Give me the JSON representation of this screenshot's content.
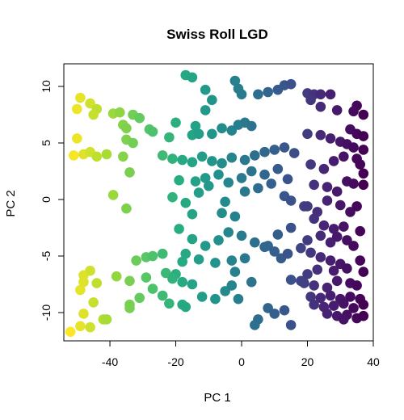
{
  "chart_data": {
    "type": "scatter",
    "title": "Swiss Roll LGD",
    "xlabel": "PC 1",
    "ylabel": "PC 2",
    "xlim": [
      -54,
      40
    ],
    "ylim": [
      -12.5,
      12
    ],
    "xticks": [
      -40,
      -20,
      0,
      20,
      40
    ],
    "yticks": [
      -10,
      -5,
      0,
      5,
      10
    ],
    "color_scale": "viridis (by PC 1)",
    "grid": false,
    "legend": "none",
    "points": [
      {
        "x": -49,
        "y": 9
      },
      {
        "x": -50,
        "y": 8
      },
      {
        "x": -46,
        "y": 8.5
      },
      {
        "x": -44,
        "y": 8
      },
      {
        "x": -45,
        "y": 7.5
      },
      {
        "x": -39,
        "y": 7.6
      },
      {
        "x": -37,
        "y": 7.7
      },
      {
        "x": -33,
        "y": 7.5
      },
      {
        "x": -31,
        "y": 7.2
      },
      {
        "x": -36,
        "y": 6.6
      },
      {
        "x": -35,
        "y": 6.3
      },
      {
        "x": -28,
        "y": 6.2
      },
      {
        "x": -27,
        "y": 6
      },
      {
        "x": -50,
        "y": 5.4
      },
      {
        "x": -51,
        "y": 3.9
      },
      {
        "x": -48,
        "y": 4
      },
      {
        "x": -46,
        "y": 4.2
      },
      {
        "x": -44,
        "y": 3.8
      },
      {
        "x": -41,
        "y": 4
      },
      {
        "x": -35,
        "y": 5.3
      },
      {
        "x": -33,
        "y": 5
      },
      {
        "x": -36,
        "y": 3.8
      },
      {
        "x": -34,
        "y": 2.4
      },
      {
        "x": -39,
        "y": 0.4
      },
      {
        "x": -35,
        "y": -0.8
      },
      {
        "x": -52,
        "y": -11.7
      },
      {
        "x": -49,
        "y": -11.2
      },
      {
        "x": -46,
        "y": -11.3
      },
      {
        "x": -42,
        "y": -10.6
      },
      {
        "x": -41,
        "y": -10.6
      },
      {
        "x": -48,
        "y": -10.1
      },
      {
        "x": -49,
        "y": -8
      },
      {
        "x": -48,
        "y": -7.3
      },
      {
        "x": -48,
        "y": -6.7
      },
      {
        "x": -46,
        "y": -6.3
      },
      {
        "x": -45,
        "y": -9.1
      },
      {
        "x": -44,
        "y": -7.4
      },
      {
        "x": -38,
        "y": -6.8
      },
      {
        "x": -34,
        "y": -7.2
      },
      {
        "x": -34,
        "y": -9.3
      },
      {
        "x": -34,
        "y": -9.6
      },
      {
        "x": -31,
        "y": -8.7
      },
      {
        "x": -29,
        "y": -6.9
      },
      {
        "x": -27,
        "y": -7.9
      },
      {
        "x": -32,
        "y": -5.4
      },
      {
        "x": -29,
        "y": -5.1
      },
      {
        "x": -27,
        "y": -5
      },
      {
        "x": -24,
        "y": -4.8
      },
      {
        "x": -23,
        "y": -6.5
      },
      {
        "x": -24,
        "y": -8.5
      },
      {
        "x": -20,
        "y": -6.6
      },
      {
        "x": -18,
        "y": -5.5
      },
      {
        "x": -18,
        "y": -7.3
      },
      {
        "x": -15,
        "y": -7.5
      },
      {
        "x": -12,
        "y": -8.6
      },
      {
        "x": -8,
        "y": -8.8
      },
      {
        "x": -5,
        "y": -8.1
      },
      {
        "x": -3,
        "y": -7.6
      },
      {
        "x": -1,
        "y": -8.8
      },
      {
        "x": -22,
        "y": -9.2
      },
      {
        "x": -18,
        "y": -9.3
      },
      {
        "x": -17,
        "y": -9.5
      },
      {
        "x": -21,
        "y": -7
      },
      {
        "x": -17,
        "y": 11
      },
      {
        "x": -15,
        "y": 10.8
      },
      {
        "x": -11,
        "y": 9.7
      },
      {
        "x": -9,
        "y": 8.8
      },
      {
        "x": -11,
        "y": 7.9
      },
      {
        "x": -14,
        "y": 6.5
      },
      {
        "x": -20,
        "y": 6.8
      },
      {
        "x": -22,
        "y": 5.5
      },
      {
        "x": -15,
        "y": 5.7
      },
      {
        "x": -13,
        "y": 5.8
      },
      {
        "x": -9,
        "y": 5.8
      },
      {
        "x": -6,
        "y": 6.3
      },
      {
        "x": -3,
        "y": 6.1
      },
      {
        "x": -1,
        "y": 6.6
      },
      {
        "x": 1,
        "y": 6.8
      },
      {
        "x": 3,
        "y": 6.5
      },
      {
        "x": -2,
        "y": 10.5
      },
      {
        "x": -1,
        "y": 9.8
      },
      {
        "x": 0,
        "y": 9.3
      },
      {
        "x": 5,
        "y": 9.3
      },
      {
        "x": 8,
        "y": 9.5
      },
      {
        "x": 11,
        "y": 9.7
      },
      {
        "x": 13,
        "y": 10.1
      },
      {
        "x": 15,
        "y": 10.2
      },
      {
        "x": -24,
        "y": 3.9
      },
      {
        "x": -21,
        "y": 3.6
      },
      {
        "x": -18,
        "y": 3.5
      },
      {
        "x": -15,
        "y": 3.3
      },
      {
        "x": -12,
        "y": 3.8
      },
      {
        "x": -9,
        "y": 3.4
      },
      {
        "x": -6,
        "y": 3.2
      },
      {
        "x": -3,
        "y": 3.7
      },
      {
        "x": 1,
        "y": 3.5
      },
      {
        "x": 4,
        "y": 3.9
      },
      {
        "x": 7,
        "y": 4.2
      },
      {
        "x": 10,
        "y": 4.4
      },
      {
        "x": 13,
        "y": 4.6
      },
      {
        "x": 16,
        "y": 4.1
      },
      {
        "x": -19,
        "y": 1.7
      },
      {
        "x": -14,
        "y": 1.6
      },
      {
        "x": -11,
        "y": 1.9
      },
      {
        "x": -7,
        "y": 2.2
      },
      {
        "x": -4,
        "y": 1.5
      },
      {
        "x": 0,
        "y": 1.9
      },
      {
        "x": 3,
        "y": 2.5
      },
      {
        "x": 7,
        "y": 2.2
      },
      {
        "x": 11,
        "y": 2.7
      },
      {
        "x": 14,
        "y": 1.8
      },
      {
        "x": -21,
        "y": 0.2
      },
      {
        "x": -17,
        "y": -0.3
      },
      {
        "x": -13,
        "y": 0.6
      },
      {
        "x": -10,
        "y": 1.2
      },
      {
        "x": -5,
        "y": -0.2
      },
      {
        "x": 1,
        "y": 0.7
      },
      {
        "x": 5,
        "y": 1
      },
      {
        "x": 9,
        "y": 1.4
      },
      {
        "x": 13,
        "y": 0.3
      },
      {
        "x": -15,
        "y": -1.3
      },
      {
        "x": -6,
        "y": -1.2
      },
      {
        "x": -2,
        "y": -1.5
      },
      {
        "x": 15,
        "y": -0.1
      },
      {
        "x": 19,
        "y": -0.6
      },
      {
        "x": -19,
        "y": -2.6
      },
      {
        "x": -15,
        "y": -3.5
      },
      {
        "x": -11,
        "y": -4.1
      },
      {
        "x": -7,
        "y": -3.6
      },
      {
        "x": -4,
        "y": -2.9
      },
      {
        "x": 0,
        "y": -3.2
      },
      {
        "x": 4,
        "y": -3.8
      },
      {
        "x": 8,
        "y": -4.1
      },
      {
        "x": 11,
        "y": -3.1
      },
      {
        "x": 15,
        "y": -2.5
      },
      {
        "x": -17,
        "y": -4.8
      },
      {
        "x": -13,
        "y": -5.3
      },
      {
        "x": -8,
        "y": -5.6
      },
      {
        "x": -3,
        "y": -5.4
      },
      {
        "x": 1,
        "y": -5.2
      },
      {
        "x": 7,
        "y": -4.2
      },
      {
        "x": 10,
        "y": -4.6
      },
      {
        "x": 12,
        "y": -5.2
      },
      {
        "x": 14,
        "y": -4.8
      },
      {
        "x": 18,
        "y": -4.3
      },
      {
        "x": -2,
        "y": -6.4
      },
      {
        "x": 3,
        "y": -7.3
      },
      {
        "x": 15,
        "y": -7.1
      },
      {
        "x": 18,
        "y": -7.2
      },
      {
        "x": 8,
        "y": -9.6
      },
      {
        "x": 5,
        "y": -10.6
      },
      {
        "x": 4,
        "y": -11.1
      },
      {
        "x": 10,
        "y": -10.1
      },
      {
        "x": 15,
        "y": -11.1
      },
      {
        "x": 13,
        "y": -9.8
      },
      {
        "x": 20,
        "y": 9.4
      },
      {
        "x": 22,
        "y": 9.3
      },
      {
        "x": 24,
        "y": 9.3
      },
      {
        "x": 27,
        "y": 9.3
      },
      {
        "x": 21,
        "y": 8.8
      },
      {
        "x": 24,
        "y": 8.2
      },
      {
        "x": 29,
        "y": 7.9
      },
      {
        "x": 35,
        "y": 8.3
      },
      {
        "x": 34,
        "y": 7.8
      },
      {
        "x": 37,
        "y": 7.5
      },
      {
        "x": 20,
        "y": 5.8
      },
      {
        "x": 24,
        "y": 5.7
      },
      {
        "x": 27,
        "y": 5.4
      },
      {
        "x": 30,
        "y": 5.1
      },
      {
        "x": 32,
        "y": 4.9
      },
      {
        "x": 34,
        "y": 4.6
      },
      {
        "x": 37,
        "y": 4.4
      },
      {
        "x": 33,
        "y": 6.2
      },
      {
        "x": 35,
        "y": 5.8
      },
      {
        "x": 37,
        "y": 5.6
      },
      {
        "x": 21,
        "y": 3.1
      },
      {
        "x": 25,
        "y": 2.7
      },
      {
        "x": 28,
        "y": 3.4
      },
      {
        "x": 31,
        "y": 3.8
      },
      {
        "x": 35,
        "y": 3.6
      },
      {
        "x": 36,
        "y": 3.1
      },
      {
        "x": 37,
        "y": 2.3
      },
      {
        "x": 22,
        "y": 1.3
      },
      {
        "x": 26,
        "y": 1.1
      },
      {
        "x": 29,
        "y": 0.7
      },
      {
        "x": 32,
        "y": 1.6
      },
      {
        "x": 34,
        "y": 1.4
      },
      {
        "x": 37,
        "y": 1.3
      },
      {
        "x": 20,
        "y": -0.6
      },
      {
        "x": 23,
        "y": -1.1
      },
      {
        "x": 26,
        "y": -0.1
      },
      {
        "x": 30,
        "y": -0.5
      },
      {
        "x": 33,
        "y": -1.1
      },
      {
        "x": 35,
        "y": -0.6
      },
      {
        "x": 22,
        "y": -1.7
      },
      {
        "x": 25,
        "y": -2.3
      },
      {
        "x": 28,
        "y": -2.6
      },
      {
        "x": 31,
        "y": -2.4
      },
      {
        "x": 36,
        "y": -2.8
      },
      {
        "x": 20,
        "y": -3.6
      },
      {
        "x": 24,
        "y": -3.2
      },
      {
        "x": 27,
        "y": -3.8
      },
      {
        "x": 29,
        "y": -3.3
      },
      {
        "x": 32,
        "y": -3.6
      },
      {
        "x": 34,
        "y": -4.1
      },
      {
        "x": 21,
        "y": -4.7
      },
      {
        "x": 24,
        "y": -5.1
      },
      {
        "x": 27,
        "y": -5.4
      },
      {
        "x": 30,
        "y": -5.7
      },
      {
        "x": 36,
        "y": -5.4
      },
      {
        "x": 20,
        "y": -6.6
      },
      {
        "x": 23,
        "y": -6.2
      },
      {
        "x": 28,
        "y": -6.3
      },
      {
        "x": 32,
        "y": -6.1
      },
      {
        "x": 37,
        "y": -6.4
      },
      {
        "x": 19,
        "y": -7.4
      },
      {
        "x": 22,
        "y": -7.6
      },
      {
        "x": 26,
        "y": -7.8
      },
      {
        "x": 29,
        "y": -7.2
      },
      {
        "x": 33,
        "y": -7.4
      },
      {
        "x": 35,
        "y": -7.6
      },
      {
        "x": 21,
        "y": -8.6
      },
      {
        "x": 24,
        "y": -8.7
      },
      {
        "x": 27,
        "y": -8.5
      },
      {
        "x": 30,
        "y": -8.8
      },
      {
        "x": 33,
        "y": -8.6
      },
      {
        "x": 36,
        "y": -8.8
      },
      {
        "x": 22,
        "y": -9.3
      },
      {
        "x": 25,
        "y": -9.5
      },
      {
        "x": 28,
        "y": -9.4
      },
      {
        "x": 31,
        "y": -9.2
      },
      {
        "x": 34,
        "y": -9.6
      },
      {
        "x": 37,
        "y": -9.3
      },
      {
        "x": 26,
        "y": -10.1
      },
      {
        "x": 29,
        "y": -10.3
      },
      {
        "x": 32,
        "y": -10.2
      },
      {
        "x": 35,
        "y": -10.5
      },
      {
        "x": 37,
        "y": -10.3
      },
      {
        "x": 31,
        "y": -10.6
      }
    ]
  }
}
